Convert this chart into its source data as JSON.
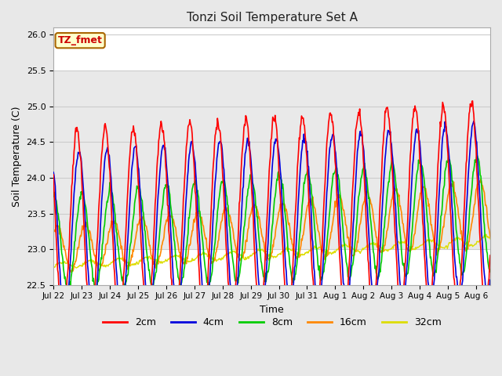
{
  "title": "Tonzi Soil Temperature Set A",
  "xlabel": "Time",
  "ylabel": "Soil Temperature (C)",
  "ylim": [
    22.5,
    26.1
  ],
  "annotation_text": "TZ_fmet",
  "annotation_color": "#cc0000",
  "annotation_bg": "#ffffcc",
  "annotation_border": "#aa6600",
  "colors": {
    "2cm": "#ff0000",
    "4cm": "#0000dd",
    "8cm": "#00cc00",
    "16cm": "#ff8800",
    "32cm": "#dddd00"
  },
  "tick_labels": [
    "Jul 22",
    "Jul 23",
    "Jul 24",
    "Jul 25",
    "Jul 26",
    "Jul 27",
    "Jul 28",
    "Jul 29",
    "Jul 30",
    "Jul 31",
    "Aug 1",
    "Aug 2",
    "Aug 3",
    "Aug 4",
    "Aug 5",
    "Aug 6"
  ],
  "shaded_band": [
    23.0,
    25.5
  ],
  "grid_color": "#cccccc",
  "bg_color": "#ffffff",
  "fig_bg": "#e8e8e8"
}
